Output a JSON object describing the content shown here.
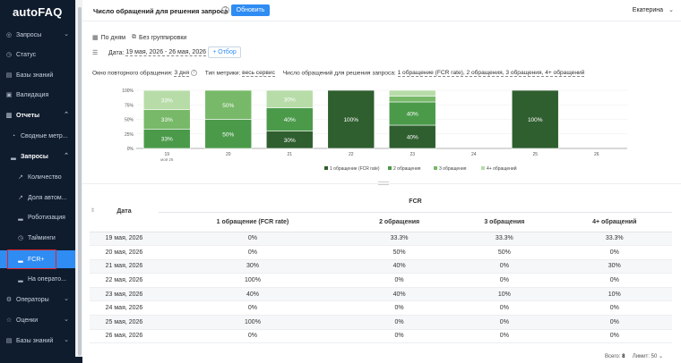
{
  "app": {
    "logo": "autoFAQ"
  },
  "sidebar": {
    "items": [
      {
        "label": "Запросы",
        "icon": "target-icon",
        "chevron": "⌄"
      },
      {
        "label": "Статус",
        "icon": "clock-icon",
        "chevron": ""
      },
      {
        "label": "Базы знаний",
        "icon": "book-icon",
        "chevron": ""
      },
      {
        "label": "Валидация",
        "icon": "doc-icon",
        "chevron": ""
      },
      {
        "label": "Отчеты",
        "icon": "chart-icon",
        "chevron": "⌃"
      },
      {
        "label": "Сводные метр...",
        "icon": "gauge-icon",
        "chevron": ""
      },
      {
        "label": "Запросы",
        "icon": "bar-icon",
        "chevron": "⌃"
      },
      {
        "label": "Количество",
        "icon": "trend-icon",
        "chevron": ""
      },
      {
        "label": "Доля автом...",
        "icon": "trend-icon",
        "chevron": ""
      },
      {
        "label": "Роботизация",
        "icon": "bar-icon",
        "chevron": ""
      },
      {
        "label": "Тайминги",
        "icon": "clock-icon",
        "chevron": ""
      },
      {
        "label": "FCR+",
        "icon": "bar-icon",
        "chevron": ""
      },
      {
        "label": "На операто...",
        "icon": "bar-icon",
        "chevron": ""
      },
      {
        "label": "Операторы",
        "icon": "gear-icon",
        "chevron": "⌄"
      },
      {
        "label": "Оценки",
        "icon": "star-icon",
        "chevron": "⌄"
      },
      {
        "label": "Базы знаний",
        "icon": "book-icon",
        "chevron": "⌄"
      }
    ]
  },
  "header": {
    "title": "Число обращений для решения запроса",
    "help": "?",
    "refresh_label": "Обновить",
    "user": "Екатерина",
    "user_chevron": "⌄"
  },
  "filters": {
    "by_days": "По дням",
    "no_grouping": "Без группировки",
    "date_label": "Дата:",
    "date_value": "19 мая, 2026 - 26 мая, 2026",
    "otbor_label": "+ Отбор"
  },
  "params": {
    "window_label": "Окно повторного обращения:",
    "window_value": "3 дня",
    "metric_type_label": "Тип метрики:",
    "metric_type_value": "весь сервис",
    "count_label": "Число обращений для решения запроса:",
    "count_value": "1 обращение (FCR rate), 2 обращения, 3 обращения, 4+ обращений"
  },
  "colors": {
    "s1": "#2f5e2f",
    "s2": "#4a9a4a",
    "s3": "#77b968",
    "s4": "#b7dca8",
    "accent": "#2f8cf3"
  },
  "chart_data": {
    "type": "bar",
    "stacked": true,
    "x": [
      "19",
      "20",
      "21",
      "22",
      "23",
      "24",
      "25",
      "26"
    ],
    "first_tick_sub": "мой 26",
    "series": [
      {
        "name": "1 обращение (FCR rate)",
        "values": [
          0,
          0,
          30,
          100,
          40,
          0,
          100,
          0
        ],
        "labels": [
          "",
          "",
          "30%",
          "100%",
          "40%",
          "",
          "100%",
          ""
        ]
      },
      {
        "name": "2 обращения",
        "values": [
          33.3,
          50,
          40,
          0,
          40,
          0,
          0,
          0
        ],
        "labels": [
          "33%",
          "50%",
          "40%",
          "",
          "40%",
          "",
          "",
          ""
        ]
      },
      {
        "name": "3 обращения",
        "values": [
          33.3,
          50,
          0,
          0,
          10,
          0,
          0,
          0
        ],
        "labels": [
          "33%",
          "50%",
          "",
          "",
          "",
          "",
          "",
          ""
        ]
      },
      {
        "name": "4+ обращений",
        "values": [
          33.3,
          0,
          30,
          0,
          10,
          0,
          0,
          0
        ],
        "labels": [
          "33%",
          "",
          "30%",
          "",
          "",
          "",
          "",
          ""
        ]
      }
    ],
    "yticks": [
      "0%",
      "25%",
      "50%",
      "75%",
      "100%"
    ],
    "ylim": [
      0,
      100
    ]
  },
  "table": {
    "date_header": "Дата",
    "group_header": "FCR",
    "columns": [
      "1 обращение (FCR rate)",
      "2 обращения",
      "3 обращения",
      "4+ обращений"
    ],
    "rows": [
      {
        "date": "19 мая, 2026",
        "v": [
          "0%",
          "33.3%",
          "33.3%",
          "33.3%"
        ]
      },
      {
        "date": "20 мая, 2026",
        "v": [
          "0%",
          "50%",
          "50%",
          "0%"
        ]
      },
      {
        "date": "21 мая, 2026",
        "v": [
          "30%",
          "40%",
          "0%",
          "30%"
        ]
      },
      {
        "date": "22 мая, 2026",
        "v": [
          "100%",
          "0%",
          "0%",
          "0%"
        ]
      },
      {
        "date": "23 мая, 2026",
        "v": [
          "40%",
          "40%",
          "10%",
          "10%"
        ]
      },
      {
        "date": "24 мая, 2026",
        "v": [
          "0%",
          "0%",
          "0%",
          "0%"
        ]
      },
      {
        "date": "25 мая, 2026",
        "v": [
          "100%",
          "0%",
          "0%",
          "0%"
        ]
      },
      {
        "date": "26 мая, 2026",
        "v": [
          "0%",
          "0%",
          "0%",
          "0%"
        ]
      }
    ]
  },
  "footer": {
    "total_label": "Всего:",
    "total_value": "8",
    "limit_label": "Лимит:",
    "limit_value": "50",
    "limit_chevron": "⌄"
  }
}
